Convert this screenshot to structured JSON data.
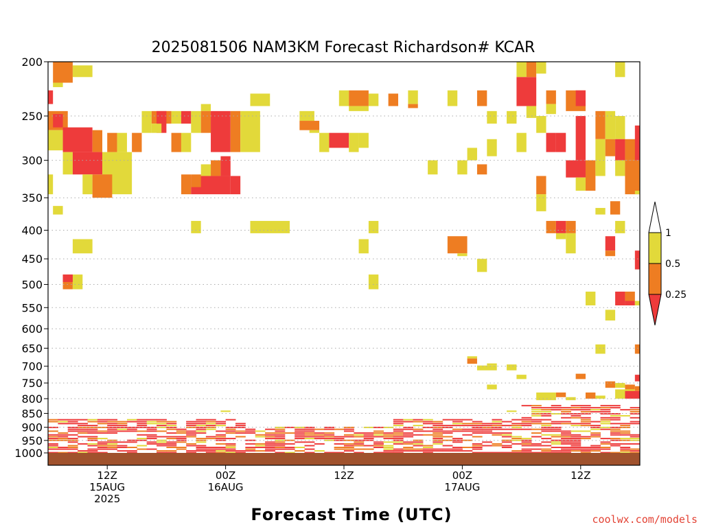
{
  "chart_data": {
    "type": "heatmap",
    "title": "2025081506 NAM3KM Forecast Richardson# KCAR",
    "xlabel": "Forecast Time (UTC)",
    "ylabel": "",
    "x_unit": "forecast hour from 06Z 15AUG 2025",
    "xlim": [
      0,
      60
    ],
    "y_unit": "pressure (hPa)",
    "y_scale": "log",
    "ylim": [
      1000,
      200
    ],
    "y_ticks": [
      200,
      250,
      300,
      350,
      400,
      450,
      500,
      550,
      600,
      650,
      700,
      750,
      800,
      850,
      900,
      950,
      1000
    ],
    "y_tick_labels": [
      "200",
      "250",
      "300",
      "350",
      "400",
      "450",
      "500",
      "550",
      "600",
      "650",
      "700",
      "750",
      "800",
      "850",
      "900",
      "950",
      "1000"
    ],
    "y_grid": "dotted",
    "x_ticks": [
      {
        "hour": 6,
        "lines": [
          "12Z",
          "15AUG",
          "2025"
        ]
      },
      {
        "hour": 18,
        "lines": [
          "00Z",
          "16AUG"
        ]
      },
      {
        "hour": 30,
        "lines": [
          "12Z"
        ]
      },
      {
        "hour": 42,
        "lines": [
          "00Z",
          "17AUG"
        ]
      },
      {
        "hour": 54,
        "lines": [
          "12Z"
        ]
      }
    ],
    "colorbar": {
      "placement": "right",
      "labels": [
        "1",
        "0.5",
        "0.25"
      ],
      "classes": [
        {
          "name": "Ri < 0.25",
          "color": "#ee3b3b"
        },
        {
          "name": "0.25 - 0.5",
          "color": "#ee7d22"
        },
        {
          "name": "0.5 - 1",
          "color": "#e2d93a"
        },
        {
          "name": "Ri > 1",
          "color": "#ffffff"
        }
      ]
    },
    "ground_color": "#a0522d",
    "grid_color": "#aaaaaa",
    "cells": [
      {
        "t0": 0.5,
        "t1": 2.5,
        "p0": 200,
        "p1": 218,
        "c": "o"
      },
      {
        "t0": 2.5,
        "t1": 4.5,
        "p0": 203,
        "p1": 213,
        "c": "y"
      },
      {
        "t0": 0.5,
        "t1": 1.5,
        "p0": 218,
        "p1": 222,
        "c": "y"
      },
      {
        "t0": 0,
        "t1": 0.5,
        "p0": 225,
        "p1": 238,
        "c": "r"
      },
      {
        "t0": 0,
        "t1": 2,
        "p0": 245,
        "p1": 265,
        "c": "o"
      },
      {
        "t0": 0.5,
        "t1": 1.5,
        "p0": 248,
        "p1": 262,
        "c": "r"
      },
      {
        "t0": 0,
        "t1": 1.5,
        "p0": 265,
        "p1": 288,
        "c": "y"
      },
      {
        "t0": 1.5,
        "t1": 4.5,
        "p0": 262,
        "p1": 290,
        "c": "r"
      },
      {
        "t0": 4.5,
        "t1": 5.5,
        "p0": 265,
        "p1": 290,
        "c": "o"
      },
      {
        "t0": 1.5,
        "t1": 2.5,
        "p0": 290,
        "p1": 318,
        "c": "y"
      },
      {
        "t0": 2.5,
        "t1": 5.5,
        "p0": 290,
        "p1": 318,
        "c": "r"
      },
      {
        "t0": 5.5,
        "t1": 8.5,
        "p0": 290,
        "p1": 345,
        "c": "y"
      },
      {
        "t0": 6,
        "t1": 7,
        "p0": 268,
        "p1": 290,
        "c": "o"
      },
      {
        "t0": 7,
        "t1": 8,
        "p0": 268,
        "p1": 290,
        "c": "y"
      },
      {
        "t0": 8.5,
        "t1": 9.5,
        "p0": 268,
        "p1": 290,
        "c": "o"
      },
      {
        "t0": 3.5,
        "t1": 4.5,
        "p0": 318,
        "p1": 345,
        "c": "y"
      },
      {
        "t0": 4.5,
        "t1": 6.5,
        "p0": 318,
        "p1": 350,
        "c": "o"
      },
      {
        "t0": 0,
        "t1": 0.5,
        "p0": 318,
        "p1": 345,
        "c": "y"
      },
      {
        "t0": 0.5,
        "t1": 1.5,
        "p0": 362,
        "p1": 375,
        "c": "y"
      },
      {
        "t0": 9.5,
        "t1": 10.5,
        "p0": 245,
        "p1": 268,
        "c": "y"
      },
      {
        "t0": 10.5,
        "t1": 12.5,
        "p0": 245,
        "p1": 258,
        "c": "o"
      },
      {
        "t0": 11,
        "t1": 12,
        "p0": 245,
        "p1": 268,
        "c": "r"
      },
      {
        "t0": 10.5,
        "t1": 11.5,
        "p0": 258,
        "p1": 268,
        "c": "y"
      },
      {
        "t0": 12.5,
        "t1": 13.5,
        "p0": 268,
        "p1": 290,
        "c": "o"
      },
      {
        "t0": 13.5,
        "t1": 14.5,
        "p0": 268,
        "p1": 290,
        "c": "y"
      },
      {
        "t0": 12.5,
        "t1": 13.5,
        "p0": 245,
        "p1": 258,
        "c": "y"
      },
      {
        "t0": 13.5,
        "t1": 14.5,
        "p0": 245,
        "p1": 258,
        "c": "r"
      },
      {
        "t0": 14.5,
        "t1": 15.5,
        "p0": 245,
        "p1": 268,
        "c": "y"
      },
      {
        "t0": 15.5,
        "t1": 16.5,
        "p0": 238,
        "p1": 245,
        "c": "y"
      },
      {
        "t0": 15.5,
        "t1": 16.5,
        "p0": 245,
        "p1": 268,
        "c": "o"
      },
      {
        "t0": 16.5,
        "t1": 18.5,
        "p0": 245,
        "p1": 290,
        "c": "r"
      },
      {
        "t0": 18.5,
        "t1": 19.5,
        "p0": 245,
        "p1": 290,
        "c": "o"
      },
      {
        "t0": 19.5,
        "t1": 21.5,
        "p0": 245,
        "p1": 290,
        "c": "y"
      },
      {
        "t0": 15.5,
        "t1": 16.5,
        "p0": 305,
        "p1": 320,
        "c": "y"
      },
      {
        "t0": 16.5,
        "t1": 17.5,
        "p0": 300,
        "p1": 320,
        "c": "o"
      },
      {
        "t0": 17.5,
        "t1": 18.5,
        "p0": 295,
        "p1": 320,
        "c": "r"
      },
      {
        "t0": 13.5,
        "t1": 14.5,
        "p0": 318,
        "p1": 345,
        "c": "o"
      },
      {
        "t0": 14.5,
        "t1": 18.5,
        "p0": 320,
        "p1": 345,
        "c": "r"
      },
      {
        "t0": 14.5,
        "t1": 15.5,
        "p0": 318,
        "p1": 335,
        "c": "o"
      },
      {
        "t0": 18.5,
        "t1": 19.5,
        "p0": 320,
        "p1": 345,
        "c": "r"
      },
      {
        "t0": 20.5,
        "t1": 22.5,
        "p0": 228,
        "p1": 240,
        "c": "y"
      },
      {
        "t0": 25.5,
        "t1": 27,
        "p0": 245,
        "p1": 255,
        "c": "y"
      },
      {
        "t0": 25.5,
        "t1": 27.5,
        "p0": 255,
        "p1": 265,
        "c": "o"
      },
      {
        "t0": 26.5,
        "t1": 27.5,
        "p0": 265,
        "p1": 268,
        "c": "y"
      },
      {
        "t0": 27.5,
        "t1": 28.5,
        "p0": 268,
        "p1": 290,
        "c": "y"
      },
      {
        "t0": 28.5,
        "t1": 30.5,
        "p0": 268,
        "p1": 285,
        "c": "r"
      },
      {
        "t0": 30.5,
        "t1": 31.5,
        "p0": 268,
        "p1": 290,
        "c": "y"
      },
      {
        "t0": 31.5,
        "t1": 32.5,
        "p0": 268,
        "p1": 285,
        "c": "y"
      },
      {
        "t0": 29.5,
        "t1": 30.5,
        "p0": 225,
        "p1": 240,
        "c": "y"
      },
      {
        "t0": 30.5,
        "t1": 32.5,
        "p0": 225,
        "p1": 240,
        "c": "o"
      },
      {
        "t0": 32.5,
        "t1": 33.5,
        "p0": 228,
        "p1": 240,
        "c": "y"
      },
      {
        "t0": 34.5,
        "t1": 35.5,
        "p0": 228,
        "p1": 240,
        "c": "o"
      },
      {
        "t0": 30.5,
        "t1": 32.5,
        "p0": 240,
        "p1": 245,
        "c": "y"
      },
      {
        "t0": 36.5,
        "t1": 37.5,
        "p0": 225,
        "p1": 238,
        "c": "y"
      },
      {
        "t0": 36.5,
        "t1": 37.5,
        "p0": 238,
        "p1": 242,
        "c": "o"
      },
      {
        "t0": 40.5,
        "t1": 41.5,
        "p0": 225,
        "p1": 240,
        "c": "y"
      },
      {
        "t0": 43.5,
        "t1": 44.5,
        "p0": 225,
        "p1": 240,
        "c": "o"
      },
      {
        "t0": 38.5,
        "t1": 39.5,
        "p0": 300,
        "p1": 318,
        "c": "y"
      },
      {
        "t0": 41.5,
        "t1": 42.5,
        "p0": 300,
        "p1": 318,
        "c": "y"
      },
      {
        "t0": 42.5,
        "t1": 43.5,
        "p0": 285,
        "p1": 300,
        "c": "y"
      },
      {
        "t0": 43.5,
        "t1": 44.5,
        "p0": 305,
        "p1": 318,
        "c": "o"
      },
      {
        "t0": 44.5,
        "t1": 45.5,
        "p0": 245,
        "p1": 258,
        "c": "y"
      },
      {
        "t0": 44.5,
        "t1": 45.5,
        "p0": 275,
        "p1": 295,
        "c": "y"
      },
      {
        "t0": 46.5,
        "t1": 47.5,
        "p0": 245,
        "p1": 258,
        "c": "y"
      },
      {
        "t0": 47.5,
        "t1": 48.5,
        "p0": 200,
        "p1": 213,
        "c": "y"
      },
      {
        "t0": 47.5,
        "t1": 49.5,
        "p0": 213,
        "p1": 240,
        "c": "r"
      },
      {
        "t0": 48.5,
        "t1": 49.5,
        "p0": 200,
        "p1": 213,
        "c": "o"
      },
      {
        "t0": 49.5,
        "t1": 50.5,
        "p0": 200,
        "p1": 210,
        "c": "y"
      },
      {
        "t0": 48.5,
        "t1": 49.5,
        "p0": 240,
        "p1": 252,
        "c": "y"
      },
      {
        "t0": 49.5,
        "t1": 50.5,
        "p0": 250,
        "p1": 268,
        "c": "y"
      },
      {
        "t0": 47.5,
        "t1": 48.5,
        "p0": 268,
        "p1": 290,
        "c": "y"
      },
      {
        "t0": 50.5,
        "t1": 51.5,
        "p0": 225,
        "p1": 238,
        "c": "o"
      },
      {
        "t0": 50.5,
        "t1": 51.5,
        "p0": 238,
        "p1": 248,
        "c": "y"
      },
      {
        "t0": 51.5,
        "t1": 52.5,
        "p0": 268,
        "p1": 290,
        "c": "r"
      },
      {
        "t0": 50.5,
        "t1": 51.5,
        "p0": 268,
        "p1": 290,
        "c": "r"
      },
      {
        "t0": 52.5,
        "t1": 54.5,
        "p0": 225,
        "p1": 245,
        "c": "o"
      },
      {
        "t0": 53.5,
        "t1": 54.5,
        "p0": 225,
        "p1": 240,
        "c": "r"
      },
      {
        "t0": 53.5,
        "t1": 54.5,
        "p0": 250,
        "p1": 300,
        "c": "r"
      },
      {
        "t0": 52.5,
        "t1": 54.5,
        "p0": 300,
        "p1": 322,
        "c": "r"
      },
      {
        "t0": 54.5,
        "t1": 55.5,
        "p0": 300,
        "p1": 340,
        "c": "o"
      },
      {
        "t0": 53.5,
        "t1": 54.5,
        "p0": 322,
        "p1": 340,
        "c": "y"
      },
      {
        "t0": 55.5,
        "t1": 56.5,
        "p0": 300,
        "p1": 320,
        "c": "y"
      },
      {
        "t0": 55.5,
        "t1": 56.5,
        "p0": 245,
        "p1": 275,
        "c": "o"
      },
      {
        "t0": 56.5,
        "t1": 57.5,
        "p0": 245,
        "p1": 275,
        "c": "y"
      },
      {
        "t0": 55.5,
        "t1": 56.5,
        "p0": 275,
        "p1": 300,
        "c": "y"
      },
      {
        "t0": 56.5,
        "t1": 57.5,
        "p0": 275,
        "p1": 295,
        "c": "o"
      },
      {
        "t0": 57.5,
        "t1": 58.5,
        "p0": 250,
        "p1": 275,
        "c": "y"
      },
      {
        "t0": 57.5,
        "t1": 58.5,
        "p0": 275,
        "p1": 300,
        "c": "r"
      },
      {
        "t0": 58.5,
        "t1": 60,
        "p0": 275,
        "p1": 300,
        "c": "o"
      },
      {
        "t0": 59.5,
        "t1": 60,
        "p0": 260,
        "p1": 300,
        "c": "r"
      },
      {
        "t0": 57.5,
        "t1": 58.5,
        "p0": 300,
        "p1": 320,
        "c": "y"
      },
      {
        "t0": 58.5,
        "t1": 60,
        "p0": 300,
        "p1": 345,
        "c": "o"
      },
      {
        "t0": 57.5,
        "t1": 58.5,
        "p0": 200,
        "p1": 213,
        "c": "y"
      },
      {
        "t0": 49.5,
        "t1": 50.5,
        "p0": 320,
        "p1": 345,
        "c": "o"
      },
      {
        "t0": 49.5,
        "t1": 50.5,
        "p0": 345,
        "p1": 370,
        "c": "y"
      },
      {
        "t0": 57,
        "t1": 58,
        "p0": 355,
        "p1": 375,
        "c": "o"
      },
      {
        "t0": 55.5,
        "t1": 56.5,
        "p0": 365,
        "p1": 375,
        "c": "y"
      },
      {
        "t0": 59.5,
        "t1": 60,
        "p0": 340,
        "p1": 345,
        "c": "y"
      },
      {
        "t0": 14.5,
        "t1": 15.5,
        "p0": 385,
        "p1": 405,
        "c": "y"
      },
      {
        "t0": 20.5,
        "t1": 24.5,
        "p0": 385,
        "p1": 405,
        "c": "y"
      },
      {
        "t0": 32.5,
        "t1": 33.5,
        "p0": 385,
        "p1": 405,
        "c": "y"
      },
      {
        "t0": 2.5,
        "t1": 4.5,
        "p0": 415,
        "p1": 440,
        "c": "y"
      },
      {
        "t0": 31.5,
        "t1": 32.5,
        "p0": 415,
        "p1": 440,
        "c": "y"
      },
      {
        "t0": 50.5,
        "t1": 51.5,
        "p0": 385,
        "p1": 405,
        "c": "o"
      },
      {
        "t0": 51.5,
        "t1": 52.5,
        "p0": 385,
        "p1": 405,
        "c": "r"
      },
      {
        "t0": 52.5,
        "t1": 53.5,
        "p0": 385,
        "p1": 405,
        "c": "o"
      },
      {
        "t0": 51.5,
        "t1": 52.5,
        "p0": 405,
        "p1": 415,
        "c": "y"
      },
      {
        "t0": 52.5,
        "t1": 53.5,
        "p0": 405,
        "p1": 440,
        "c": "y"
      },
      {
        "t0": 57.5,
        "t1": 58.5,
        "p0": 385,
        "p1": 405,
        "c": "y"
      },
      {
        "t0": 56.5,
        "t1": 57.5,
        "p0": 410,
        "p1": 435,
        "c": "r"
      },
      {
        "t0": 56.5,
        "t1": 57.5,
        "p0": 435,
        "p1": 445,
        "c": "o"
      },
      {
        "t0": 40.5,
        "t1": 42.5,
        "p0": 410,
        "p1": 440,
        "c": "o"
      },
      {
        "t0": 41.5,
        "t1": 42.5,
        "p0": 440,
        "p1": 445,
        "c": "y"
      },
      {
        "t0": 43.5,
        "t1": 44.5,
        "p0": 450,
        "p1": 475,
        "c": "y"
      },
      {
        "t0": 1.5,
        "t1": 2.5,
        "p0": 480,
        "p1": 510,
        "c": "o"
      },
      {
        "t0": 2.5,
        "t1": 3.5,
        "p0": 480,
        "p1": 510,
        "c": "y"
      },
      {
        "t0": 1.5,
        "t1": 2.5,
        "p0": 480,
        "p1": 495,
        "c": "r"
      },
      {
        "t0": 32.5,
        "t1": 33.5,
        "p0": 480,
        "p1": 510,
        "c": "y"
      },
      {
        "t0": 59.5,
        "t1": 60,
        "p0": 435,
        "p1": 470,
        "c": "r"
      },
      {
        "t0": 54.5,
        "t1": 55.5,
        "p0": 515,
        "p1": 545,
        "c": "y"
      },
      {
        "t0": 57.5,
        "t1": 58.5,
        "p0": 515,
        "p1": 545,
        "c": "r"
      },
      {
        "t0": 58.5,
        "t1": 59.5,
        "p0": 515,
        "p1": 535,
        "c": "o"
      },
      {
        "t0": 58.5,
        "t1": 59.5,
        "p0": 535,
        "p1": 545,
        "c": "r"
      },
      {
        "t0": 59.5,
        "t1": 60,
        "p0": 535,
        "p1": 545,
        "c": "y"
      },
      {
        "t0": 56.5,
        "t1": 57.5,
        "p0": 555,
        "p1": 580,
        "c": "y"
      },
      {
        "t0": 55.5,
        "t1": 56.5,
        "p0": 640,
        "p1": 665,
        "c": "y"
      },
      {
        "t0": 59.5,
        "t1": 60,
        "p0": 640,
        "p1": 665,
        "c": "o"
      },
      {
        "t0": 42.5,
        "t1": 43.5,
        "p0": 678,
        "p1": 693,
        "c": "o"
      },
      {
        "t0": 42.5,
        "t1": 43.5,
        "p0": 672,
        "p1": 678,
        "c": "y"
      },
      {
        "t0": 43.5,
        "t1": 45.5,
        "p0": 698,
        "p1": 712,
        "c": "y"
      },
      {
        "t0": 44.5,
        "t1": 45.5,
        "p0": 692,
        "p1": 698,
        "c": "y"
      },
      {
        "t0": 46.5,
        "t1": 47.5,
        "p0": 695,
        "p1": 712,
        "c": "y"
      },
      {
        "t0": 47.5,
        "t1": 48.5,
        "p0": 725,
        "p1": 738,
        "c": "y"
      },
      {
        "t0": 44.5,
        "t1": 45.5,
        "p0": 755,
        "p1": 770,
        "c": "y"
      },
      {
        "t0": 53.5,
        "t1": 54.5,
        "p0": 722,
        "p1": 738,
        "c": "o"
      },
      {
        "t0": 56.5,
        "t1": 57.5,
        "p0": 745,
        "p1": 765,
        "c": "o"
      },
      {
        "t0": 57.5,
        "t1": 58.5,
        "p0": 750,
        "p1": 765,
        "c": "y"
      },
      {
        "t0": 58.5,
        "t1": 59.5,
        "p0": 755,
        "p1": 770,
        "c": "o"
      },
      {
        "t0": 59.5,
        "t1": 60,
        "p0": 725,
        "p1": 745,
        "c": "r"
      },
      {
        "t0": 49.5,
        "t1": 51.5,
        "p0": 780,
        "p1": 805,
        "c": "y"
      },
      {
        "t0": 51.5,
        "t1": 52.5,
        "p0": 780,
        "p1": 795,
        "c": "o"
      },
      {
        "t0": 52.5,
        "t1": 53.5,
        "p0": 795,
        "p1": 805,
        "c": "y"
      },
      {
        "t0": 54.5,
        "t1": 55.5,
        "p0": 780,
        "p1": 800,
        "c": "o"
      },
      {
        "t0": 55.5,
        "t1": 56.5,
        "p0": 790,
        "p1": 800,
        "c": "y"
      },
      {
        "t0": 57.5,
        "t1": 59.5,
        "p0": 770,
        "p1": 800,
        "c": "y"
      },
      {
        "t0": 58.5,
        "t1": 60,
        "p0": 775,
        "p1": 800,
        "c": "r"
      },
      {
        "t0": 59.5,
        "t1": 60,
        "p0": 760,
        "p1": 775,
        "c": "o"
      },
      {
        "t0": 17.5,
        "t1": 18.5,
        "p0": 840,
        "p1": 845,
        "c": "y"
      },
      {
        "t0": 46.5,
        "t1": 47.5,
        "p0": 840,
        "p1": 845,
        "c": "y"
      }
    ],
    "cell_color_key": {
      "r": "Ri < 0.25",
      "o": "0.25 - 0.5",
      "y": "0.5 - 1"
    }
  },
  "credit": "coolwx.com/models"
}
